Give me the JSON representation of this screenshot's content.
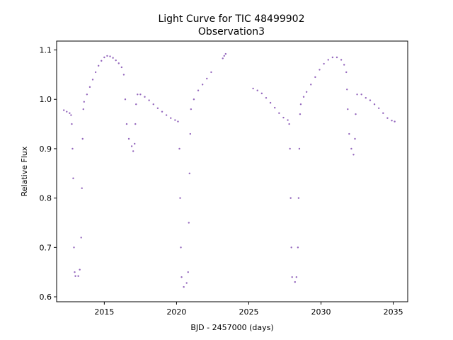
{
  "chart_data": {
    "type": "scatter",
    "title": "Light Curve for TIC 48499902",
    "subtitle": "Observation3",
    "xlabel": "BJD - 2457000 (days)",
    "ylabel": "Relative Flux",
    "xlim": [
      2011.7,
      2036.0
    ],
    "ylim": [
      0.59,
      1.118
    ],
    "xticks": [
      2015,
      2020,
      2025,
      2030,
      2035
    ],
    "yticks": [
      0.6,
      0.7,
      0.8,
      0.9,
      1.0,
      1.1
    ],
    "xtick_labels": [
      "2015",
      "2020",
      "2025",
      "2030",
      "2035"
    ],
    "ytick_labels": [
      "0.6",
      "0.7",
      "0.8",
      "0.9",
      "1.0",
      "1.1"
    ],
    "grid": false,
    "legend": "none",
    "marker_color": "#9467bd",
    "marker_size": "small",
    "series": [
      {
        "points": [
          [
            12.2,
            0.978
          ],
          [
            12.4,
            0.975
          ],
          [
            12.6,
            0.972
          ],
          [
            12.7,
            0.968
          ],
          [
            12.75,
            0.95
          ],
          [
            12.8,
            0.9
          ],
          [
            12.85,
            0.84
          ],
          [
            12.9,
            0.7
          ],
          [
            12.95,
            0.65
          ],
          [
            13.0,
            0.642
          ],
          [
            13.2,
            0.642
          ],
          [
            13.3,
            0.655
          ],
          [
            13.4,
            0.72
          ],
          [
            13.45,
            0.82
          ],
          [
            13.5,
            0.92
          ],
          [
            13.55,
            0.98
          ],
          [
            13.6,
            0.995
          ],
          [
            13.8,
            1.01
          ],
          [
            14.0,
            1.025
          ],
          [
            14.2,
            1.04
          ],
          [
            14.4,
            1.055
          ],
          [
            14.6,
            1.068
          ],
          [
            14.8,
            1.078
          ],
          [
            15.0,
            1.085
          ],
          [
            15.2,
            1.088
          ],
          [
            15.4,
            1.087
          ],
          [
            15.6,
            1.084
          ],
          [
            15.8,
            1.079
          ],
          [
            16.0,
            1.073
          ],
          [
            16.2,
            1.065
          ],
          [
            16.35,
            1.05
          ],
          [
            16.45,
            1.0
          ],
          [
            16.55,
            0.95
          ],
          [
            16.7,
            0.92
          ],
          [
            16.9,
            0.905
          ],
          [
            17.0,
            0.895
          ],
          [
            17.1,
            0.91
          ],
          [
            17.15,
            0.95
          ],
          [
            17.2,
            0.99
          ],
          [
            17.3,
            1.01
          ],
          [
            17.5,
            1.01
          ],
          [
            17.8,
            1.005
          ],
          [
            18.1,
            0.998
          ],
          [
            18.4,
            0.99
          ],
          [
            18.7,
            0.982
          ],
          [
            19.0,
            0.975
          ],
          [
            19.3,
            0.968
          ],
          [
            19.6,
            0.962
          ],
          [
            19.9,
            0.958
          ],
          [
            20.1,
            0.955
          ],
          [
            20.2,
            0.9
          ],
          [
            20.25,
            0.8
          ],
          [
            20.3,
            0.7
          ],
          [
            20.35,
            0.64
          ],
          [
            20.5,
            0.62
          ],
          [
            20.7,
            0.628
          ],
          [
            20.8,
            0.65
          ],
          [
            20.85,
            0.75
          ],
          [
            20.9,
            0.85
          ],
          [
            20.95,
            0.93
          ],
          [
            21.0,
            0.98
          ],
          [
            21.2,
            1.0
          ],
          [
            21.5,
            1.018
          ],
          [
            21.8,
            1.03
          ],
          [
            22.1,
            1.042
          ],
          [
            22.4,
            1.055
          ],
          [
            23.2,
            1.083
          ],
          [
            23.3,
            1.088
          ],
          [
            23.4,
            1.092
          ],
          [
            25.3,
            1.022
          ],
          [
            25.6,
            1.018
          ],
          [
            25.9,
            1.012
          ],
          [
            26.2,
            1.003
          ],
          [
            26.5,
            0.993
          ],
          [
            26.8,
            0.983
          ],
          [
            27.1,
            0.972
          ],
          [
            27.4,
            0.963
          ],
          [
            27.7,
            0.958
          ],
          [
            27.8,
            0.95
          ],
          [
            27.85,
            0.9
          ],
          [
            27.9,
            0.8
          ],
          [
            27.95,
            0.7
          ],
          [
            28.0,
            0.64
          ],
          [
            28.2,
            0.63
          ],
          [
            28.3,
            0.64
          ],
          [
            28.4,
            0.7
          ],
          [
            28.45,
            0.8
          ],
          [
            28.5,
            0.9
          ],
          [
            28.55,
            0.97
          ],
          [
            28.6,
            0.99
          ],
          [
            28.8,
            1.005
          ],
          [
            29.0,
            1.015
          ],
          [
            29.3,
            1.03
          ],
          [
            29.6,
            1.045
          ],
          [
            29.9,
            1.06
          ],
          [
            30.2,
            1.072
          ],
          [
            30.5,
            1.08
          ],
          [
            30.8,
            1.085
          ],
          [
            31.1,
            1.085
          ],
          [
            31.4,
            1.08
          ],
          [
            31.6,
            1.07
          ],
          [
            31.75,
            1.055
          ],
          [
            31.8,
            1.02
          ],
          [
            31.85,
            0.98
          ],
          [
            31.95,
            0.93
          ],
          [
            32.1,
            0.9
          ],
          [
            32.25,
            0.888
          ],
          [
            32.35,
            0.92
          ],
          [
            32.4,
            0.97
          ],
          [
            32.5,
            1.01
          ],
          [
            32.8,
            1.01
          ],
          [
            33.1,
            1.003
          ],
          [
            33.4,
            0.998
          ],
          [
            33.7,
            0.99
          ],
          [
            34.0,
            0.982
          ],
          [
            34.3,
            0.972
          ],
          [
            34.6,
            0.962
          ],
          [
            34.9,
            0.957
          ],
          [
            35.1,
            0.955
          ]
        ]
      }
    ]
  }
}
